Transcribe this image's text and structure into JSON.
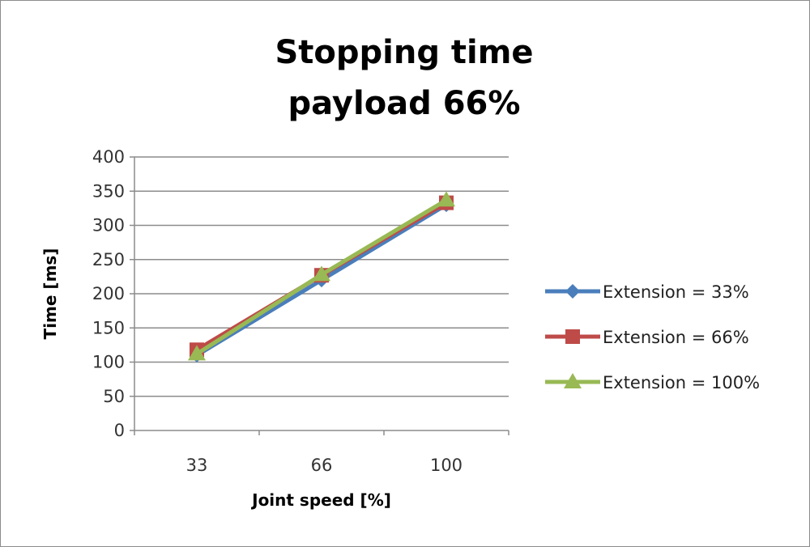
{
  "chart_data": {
    "type": "line",
    "title": [
      "Stopping time",
      "payload 66%"
    ],
    "xlabel": "Joint speed [%]",
    "ylabel": "Time [ms]",
    "categories": [
      "33",
      "66",
      "100"
    ],
    "ylim": [
      0,
      400
    ],
    "yticks": [
      "0",
      "50",
      "100",
      "150",
      "200",
      "250",
      "300",
      "350",
      "400"
    ],
    "grid": true,
    "legend_position": "right",
    "series": [
      {
        "name": "Extension = 33%",
        "values": [
          110,
          220,
          330
        ],
        "color": "#4a7ebb",
        "marker": "diamond"
      },
      {
        "name": "Extension = 66%",
        "values": [
          118,
          227,
          333
        ],
        "color": "#be4b48",
        "marker": "square"
      },
      {
        "name": "Extension = 100%",
        "values": [
          112,
          228,
          337
        ],
        "color": "#98b954",
        "marker": "triangle"
      }
    ]
  }
}
